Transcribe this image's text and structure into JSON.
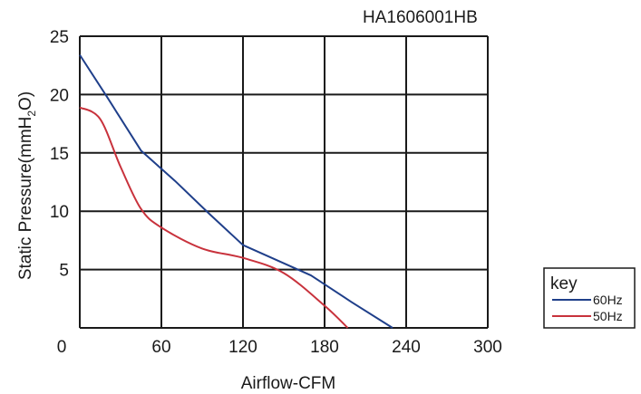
{
  "chart_data": {
    "type": "line",
    "title": "HA1606001HB",
    "xlabel": "Airflow-CFM",
    "ylabel": {
      "prefix": "Static Pressure(mmH",
      "subscript": "2",
      "suffix": "O)"
    },
    "xlim": [
      0,
      300
    ],
    "ylim": [
      0,
      25
    ],
    "x_ticks": [
      0,
      60,
      120,
      180,
      240,
      300
    ],
    "y_ticks": [
      5,
      10,
      15,
      20,
      25
    ],
    "grid": true,
    "legend": {
      "title": "key",
      "placement": "right"
    },
    "series": [
      {
        "name": "60Hz",
        "color": "#1f3f8a",
        "x": [
          0,
          20,
          45,
          70,
          95,
          120,
          145,
          170,
          200,
          230
        ],
        "y": [
          23.4,
          19.8,
          15.2,
          12.6,
          9.8,
          7.1,
          5.8,
          4.5,
          2.2,
          0
        ]
      },
      {
        "name": "50Hz",
        "color": "#c8323c",
        "x": [
          0,
          15,
          30,
          45,
          60,
          90,
          120,
          150,
          180,
          197
        ],
        "y": [
          18.9,
          17.9,
          13.8,
          10.2,
          8.6,
          6.8,
          6.0,
          4.7,
          1.9,
          0
        ]
      }
    ]
  }
}
